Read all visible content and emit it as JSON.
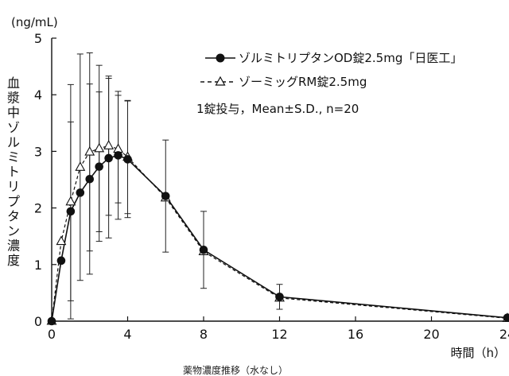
{
  "chart_data": {
    "type": "line",
    "unit_label": "(ng/mL)",
    "ylabel": "血漿中ゾルミトリプタン濃度",
    "xlabel": "時間（h）",
    "caption": "薬物濃度推移（水なし）",
    "annotation": "1錠投与，Mean±S.D., n=20",
    "xlim": [
      0,
      24
    ],
    "ylim": [
      0,
      5
    ],
    "xticks": [
      0,
      4,
      8,
      12,
      16,
      20,
      24
    ],
    "yticks": [
      0,
      1,
      2,
      3,
      4,
      5
    ],
    "legend_position": "top-right",
    "series": [
      {
        "name": "ゾルミトリプタンOD錠2.5mg「日医工」",
        "marker": "filled-circle",
        "line": "solid",
        "x": [
          0,
          0.5,
          1,
          1.5,
          2,
          2.5,
          3,
          3.5,
          4,
          6,
          8,
          12,
          24
        ],
        "y": [
          0,
          1.07,
          1.94,
          2.27,
          2.51,
          2.73,
          2.88,
          2.93,
          2.86,
          2.21,
          1.26,
          0.43,
          0.06
        ],
        "sd": [
          0,
          0,
          1.58,
          0,
          1.68,
          1.32,
          1.41,
          1.13,
          1.03,
          0.99,
          0.68,
          0.22,
          0
        ]
      },
      {
        "name": "ゾーミッグRM錠2.5mg",
        "marker": "open-triangle",
        "line": "dashed",
        "x": [
          0,
          0.5,
          1,
          1.5,
          2,
          2.5,
          3,
          3.5,
          4,
          6,
          8,
          12,
          24
        ],
        "y": [
          0,
          1.41,
          2.11,
          2.72,
          2.99,
          3.05,
          3.1,
          3.04,
          2.9,
          2.18,
          1.23,
          0.41,
          0.05
        ],
        "sd": [
          0,
          0,
          2.07,
          2.0,
          1.75,
          1.47,
          1.23,
          0.95,
          1.0,
          0,
          0,
          0,
          0
        ]
      }
    ]
  }
}
